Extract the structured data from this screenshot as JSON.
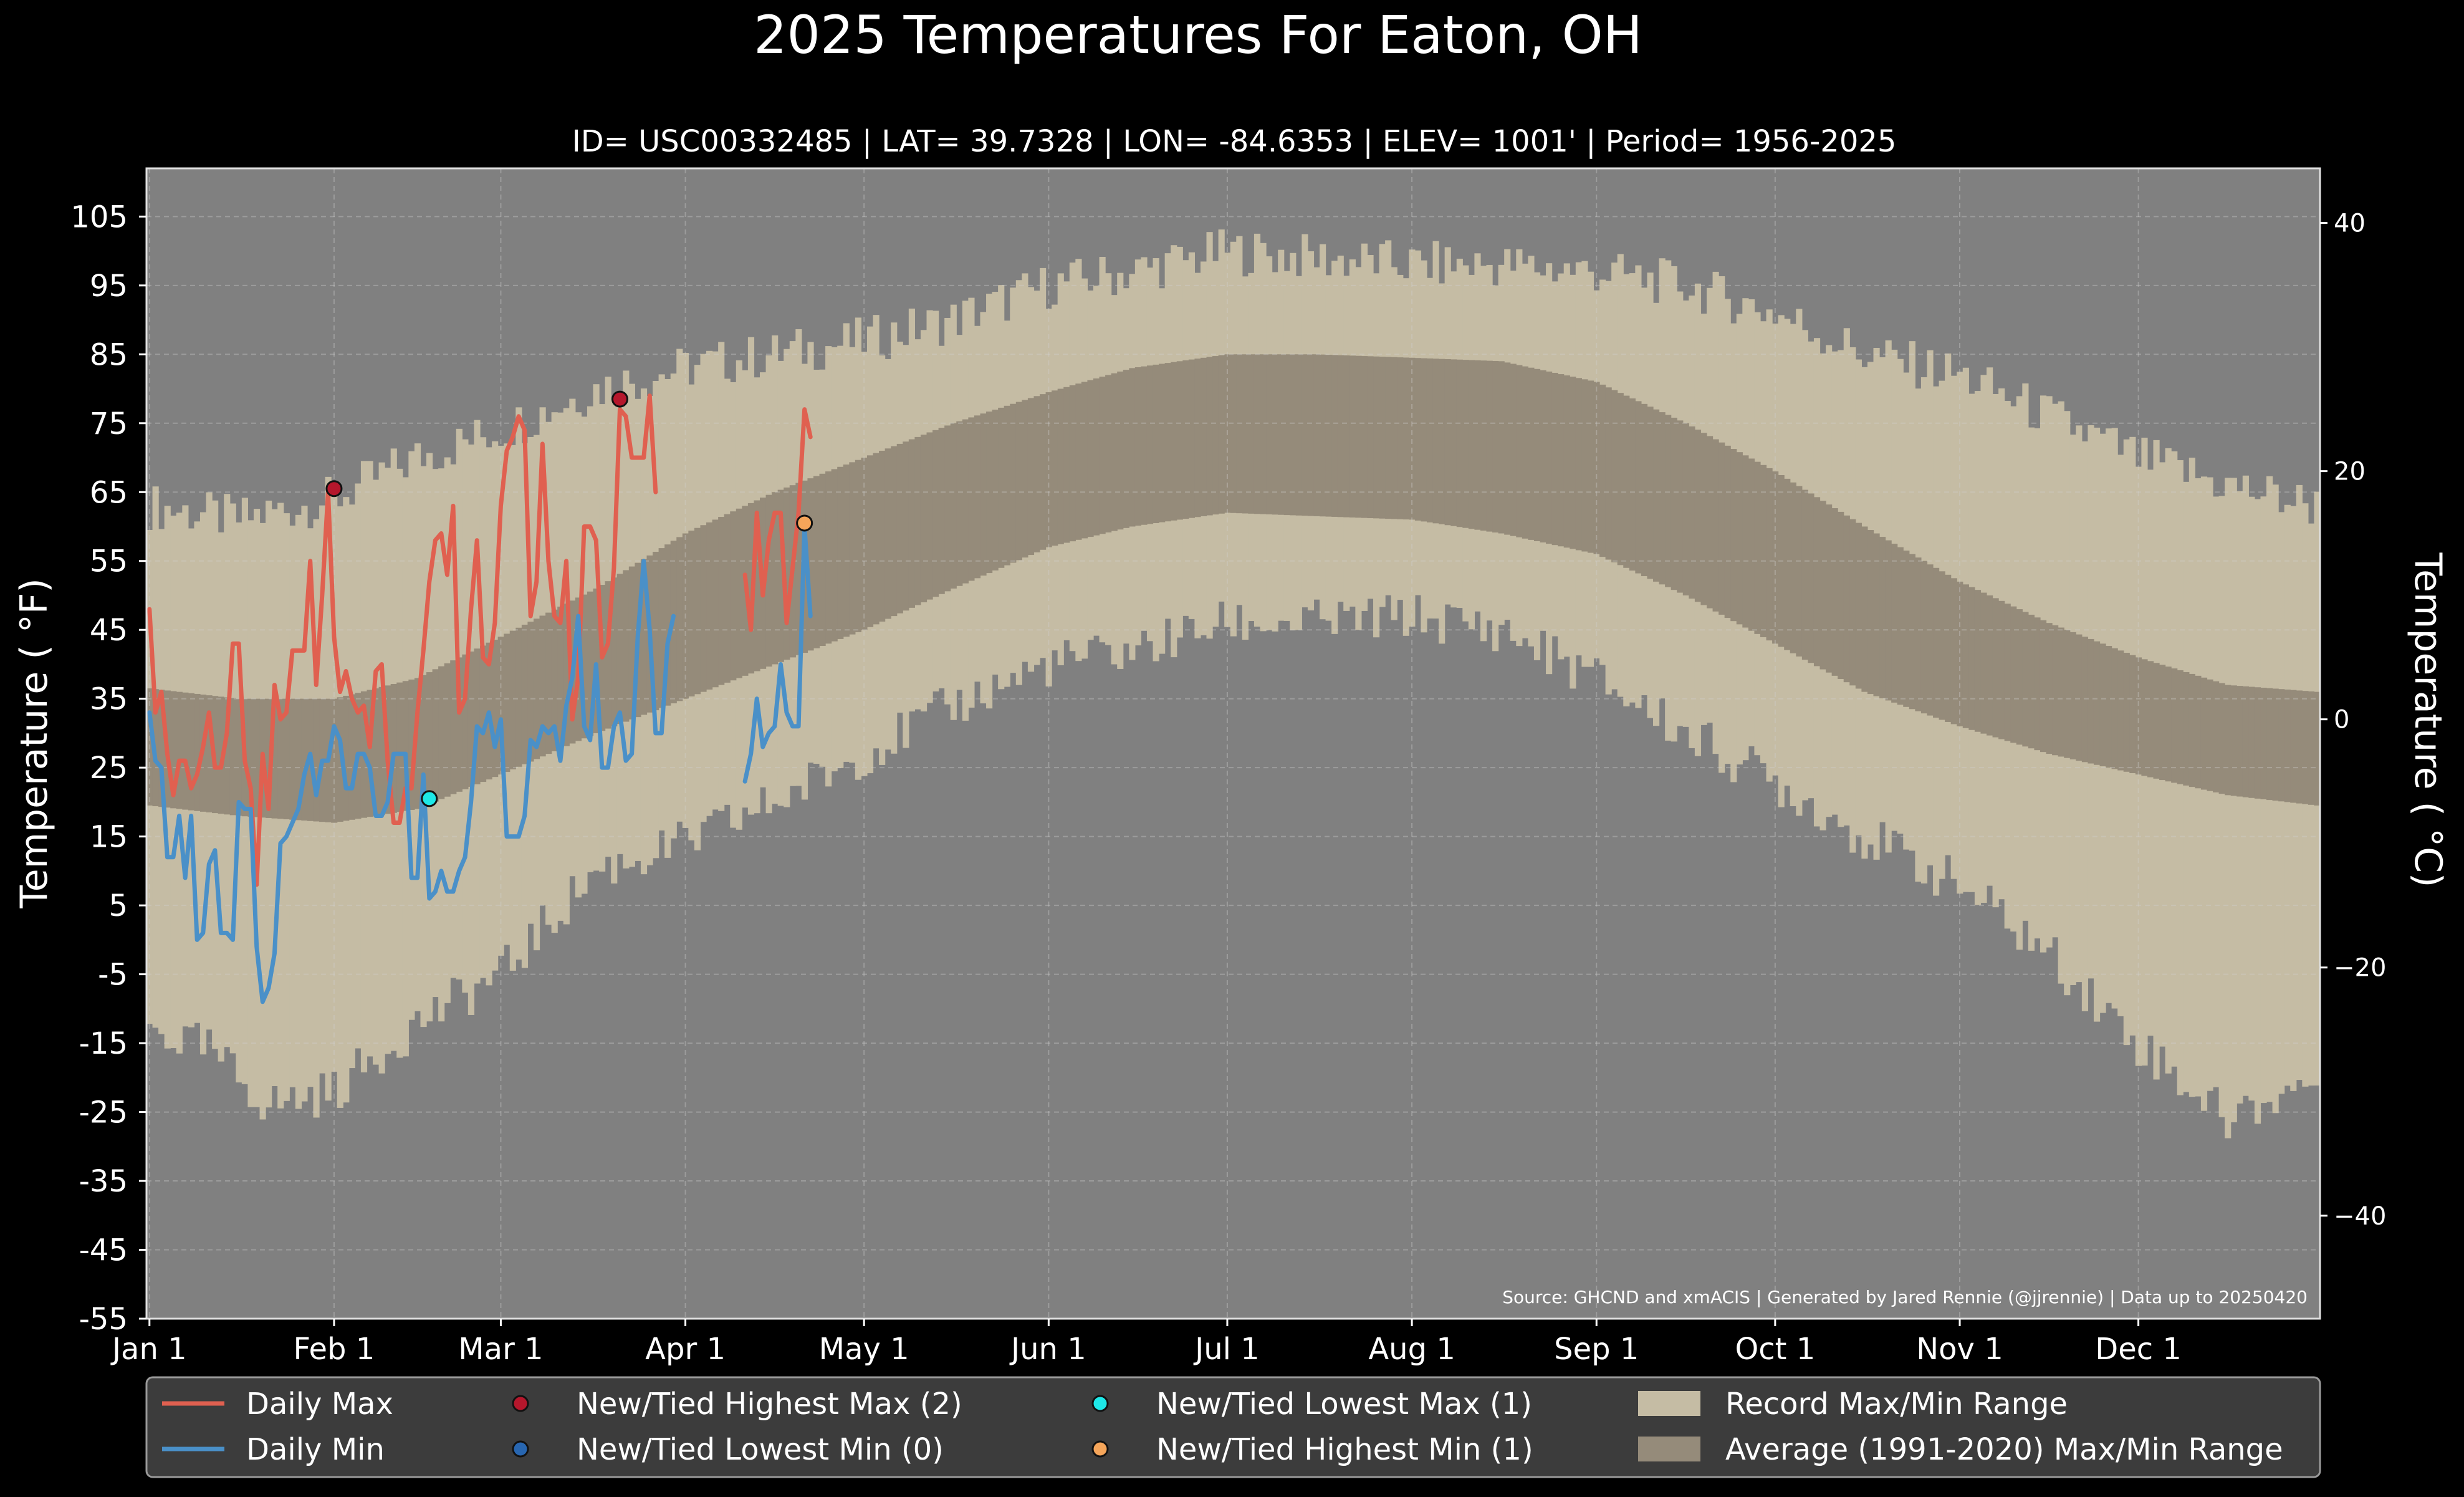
{
  "chart_data": {
    "type": "line",
    "title": "2025 Temperatures For Eaton, OH",
    "subtitle": "ID= USC00332485 | LAT= 39.7328 | LON= -84.6353 | ELEV= 1001' | Period= 1956-2025",
    "ylabel": "Temperature ($^\\circ$F)",
    "ylabel_display": "Temperature ( °F)",
    "ylabel_right": "Temperature ( °C)",
    "source": "Source: GHCND and xmACIS | Generated by Jared Rennie (@jjrennie) | Data up to 20250420",
    "ylim": [
      -55,
      112
    ],
    "ylim_right_c": [
      -48.3,
      44.4
    ],
    "xlim_day": [
      -0.5,
      364.5
    ],
    "grid": true,
    "x_ticks": [
      {
        "day": 0,
        "label": "Jan 1"
      },
      {
        "day": 31,
        "label": "Feb 1"
      },
      {
        "day": 59,
        "label": "Mar 1"
      },
      {
        "day": 90,
        "label": "Apr 1"
      },
      {
        "day": 120,
        "label": "May 1"
      },
      {
        "day": 151,
        "label": "Jun 1"
      },
      {
        "day": 181,
        "label": "Jul 1"
      },
      {
        "day": 212,
        "label": "Aug 1"
      },
      {
        "day": 243,
        "label": "Sep 1"
      },
      {
        "day": 273,
        "label": "Oct 1"
      },
      {
        "day": 304,
        "label": "Nov 1"
      },
      {
        "day": 334,
        "label": "Dec 1"
      }
    ],
    "y_ticks": [
      105,
      95,
      85,
      75,
      65,
      55,
      45,
      35,
      25,
      15,
      5,
      -5,
      -15,
      -25,
      -35,
      -45,
      -55
    ],
    "y_ticks_right": [
      40,
      20,
      0,
      -20,
      -40
    ],
    "record_range": {
      "name": "Record Max/Min Range",
      "color": "#c5bca4",
      "max_anchors": [
        [
          0,
          63
        ],
        [
          15,
          61
        ],
        [
          31,
          64
        ],
        [
          45,
          70
        ],
        [
          59,
          74
        ],
        [
          75,
          80
        ],
        [
          90,
          83
        ],
        [
          105,
          85
        ],
        [
          120,
          87
        ],
        [
          135,
          90
        ],
        [
          151,
          95
        ],
        [
          165,
          97
        ],
        [
          181,
          100
        ],
        [
          196,
          99
        ],
        [
          212,
          98
        ],
        [
          227,
          98
        ],
        [
          243,
          97
        ],
        [
          258,
          95
        ],
        [
          273,
          91
        ],
        [
          288,
          85
        ],
        [
          304,
          82
        ],
        [
          319,
          76
        ],
        [
          334,
          70
        ],
        [
          349,
          66
        ],
        [
          364,
          63
        ]
      ],
      "min_anchors": [
        [
          0,
          -13
        ],
        [
          10,
          -16
        ],
        [
          20,
          -24
        ],
        [
          31,
          -22
        ],
        [
          45,
          -12
        ],
        [
          59,
          -5
        ],
        [
          75,
          10
        ],
        [
          90,
          14
        ],
        [
          105,
          20
        ],
        [
          120,
          27
        ],
        [
          135,
          34
        ],
        [
          151,
          40
        ],
        [
          165,
          42
        ],
        [
          181,
          46
        ],
        [
          196,
          46
        ],
        [
          212,
          47
        ],
        [
          227,
          45
        ],
        [
          243,
          38
        ],
        [
          258,
          30
        ],
        [
          273,
          23
        ],
        [
          288,
          15
        ],
        [
          304,
          8
        ],
        [
          319,
          -2
        ],
        [
          334,
          -15
        ],
        [
          349,
          -26
        ],
        [
          364,
          -20
        ]
      ]
    },
    "average_range": {
      "name": "Average (1991-2020) Max/Min Range",
      "color": "#958b7a",
      "max_anchors": [
        [
          0,
          36.5
        ],
        [
          15,
          35
        ],
        [
          31,
          35
        ],
        [
          45,
          38
        ],
        [
          59,
          44
        ],
        [
          75,
          51
        ],
        [
          90,
          59
        ],
        [
          105,
          65
        ],
        [
          120,
          70
        ],
        [
          135,
          75
        ],
        [
          151,
          79.5
        ],
        [
          165,
          83
        ],
        [
          181,
          85
        ],
        [
          196,
          85
        ],
        [
          212,
          84.5
        ],
        [
          227,
          84
        ],
        [
          243,
          81
        ],
        [
          258,
          75
        ],
        [
          273,
          68
        ],
        [
          288,
          60
        ],
        [
          304,
          52
        ],
        [
          319,
          46
        ],
        [
          334,
          41
        ],
        [
          349,
          37
        ],
        [
          364,
          36
        ]
      ],
      "min_anchors": [
        [
          0,
          19.5
        ],
        [
          15,
          18
        ],
        [
          31,
          17
        ],
        [
          45,
          19
        ],
        [
          59,
          24
        ],
        [
          75,
          30
        ],
        [
          90,
          35
        ],
        [
          105,
          40
        ],
        [
          120,
          45
        ],
        [
          135,
          51
        ],
        [
          151,
          57
        ],
        [
          165,
          60
        ],
        [
          181,
          62
        ],
        [
          196,
          61.5
        ],
        [
          212,
          61
        ],
        [
          227,
          59
        ],
        [
          243,
          56
        ],
        [
          258,
          50
        ],
        [
          273,
          43
        ],
        [
          288,
          36
        ],
        [
          304,
          31
        ],
        [
          319,
          27
        ],
        [
          334,
          24
        ],
        [
          349,
          21
        ],
        [
          364,
          19.5
        ]
      ]
    },
    "series": [
      {
        "name": "Daily Max",
        "color": "#e06050",
        "start_day": 0,
        "values": [
          48,
          33,
          36,
          27,
          21,
          26,
          26,
          22,
          24,
          28,
          33,
          25,
          25,
          30,
          43,
          43,
          26,
          22,
          8,
          27,
          19,
          37,
          32,
          33,
          42,
          42,
          42,
          55,
          37,
          50,
          65,
          44,
          36,
          39,
          35,
          33,
          34,
          28,
          39,
          40,
          26,
          17,
          17,
          22,
          22,
          33,
          42,
          52,
          58,
          59,
          53,
          63,
          33,
          35,
          48,
          58,
          41,
          40,
          46,
          63,
          71,
          73,
          76,
          74,
          47,
          52,
          72,
          55,
          47,
          46,
          55,
          32,
          38,
          60,
          60,
          58,
          41,
          43,
          54,
          77,
          76,
          70,
          70,
          70,
          79,
          65,
          null,
          null,
          null,
          null,
          null,
          null,
          null,
          null,
          null,
          null,
          null,
          null,
          null,
          null,
          null,
          null,
          null,
          null,
          null,
          null,
          null,
          null,
          null,
          null
        ]
      },
      {
        "name": "Daily Max (segment 2)",
        "color": "#e06050",
        "start_day": 100,
        "values": [
          53,
          45,
          62,
          50,
          58,
          62,
          62,
          46,
          54,
          62,
          77,
          73
        ]
      },
      {
        "name": "Daily Min",
        "color": "#4a90c8",
        "start_day": 0,
        "values": [
          33,
          26,
          25,
          12,
          12,
          18,
          9,
          18,
          0,
          1,
          11,
          13,
          1,
          1,
          0,
          20,
          19,
          19,
          -1,
          -9,
          -7,
          -2,
          14,
          15,
          17,
          19,
          24,
          27,
          21,
          26,
          26,
          31,
          29,
          22,
          22,
          27,
          27,
          25,
          18,
          18,
          20,
          27,
          27,
          27,
          9,
          9,
          24,
          6,
          7,
          10,
          7,
          7,
          10,
          12,
          20,
          31,
          30,
          33,
          28,
          32,
          15,
          15,
          15,
          18,
          29,
          28,
          31,
          30,
          31,
          26,
          34,
          38,
          47,
          31,
          29,
          40,
          25,
          25,
          31,
          33,
          26,
          27,
          44,
          55,
          45,
          30,
          30,
          43,
          47,
          null
        ]
      },
      {
        "name": "Daily Min (segment 2)",
        "color": "#4a90c8",
        "start_day": 100,
        "values": [
          23,
          27,
          35,
          28,
          30,
          31,
          40,
          33,
          31,
          31,
          60,
          47
        ]
      }
    ],
    "markers": [
      {
        "name": "New/Tied Highest Max",
        "day": 31,
        "value": 65.5,
        "color": "#b5172c"
      },
      {
        "name": "New/Tied Highest Max",
        "day": 79,
        "value": 78.5,
        "color": "#b5172c"
      },
      {
        "name": "New/Tied Lowest Max",
        "day": 47,
        "value": 20.5,
        "color": "#1ee8e8"
      },
      {
        "name": "New/Tied Highest Min",
        "day": 110,
        "value": 60.5,
        "color": "#f5a55a"
      }
    ],
    "legend": {
      "placement": "bottom",
      "items": [
        {
          "kind": "line",
          "label": "Daily Max",
          "color": "#e06050"
        },
        {
          "kind": "dot",
          "label": "New/Tied Highest Max (2)",
          "color": "#b5172c"
        },
        {
          "kind": "dot",
          "label": "New/Tied Lowest Max (1)",
          "color": "#1ee8e8"
        },
        {
          "kind": "patch",
          "label": "Record Max/Min Range",
          "color": "#c5bca4"
        },
        {
          "kind": "line",
          "label": "Daily Min",
          "color": "#4a90c8"
        },
        {
          "kind": "dot",
          "label": "New/Tied Lowest Min (0)",
          "color": "#2866b0"
        },
        {
          "kind": "dot",
          "label": "New/Tied Highest Min (1)",
          "color": "#f5a55a"
        },
        {
          "kind": "patch",
          "label": "Average (1991-2020) Max/Min Range",
          "color": "#958b7a"
        }
      ]
    }
  }
}
